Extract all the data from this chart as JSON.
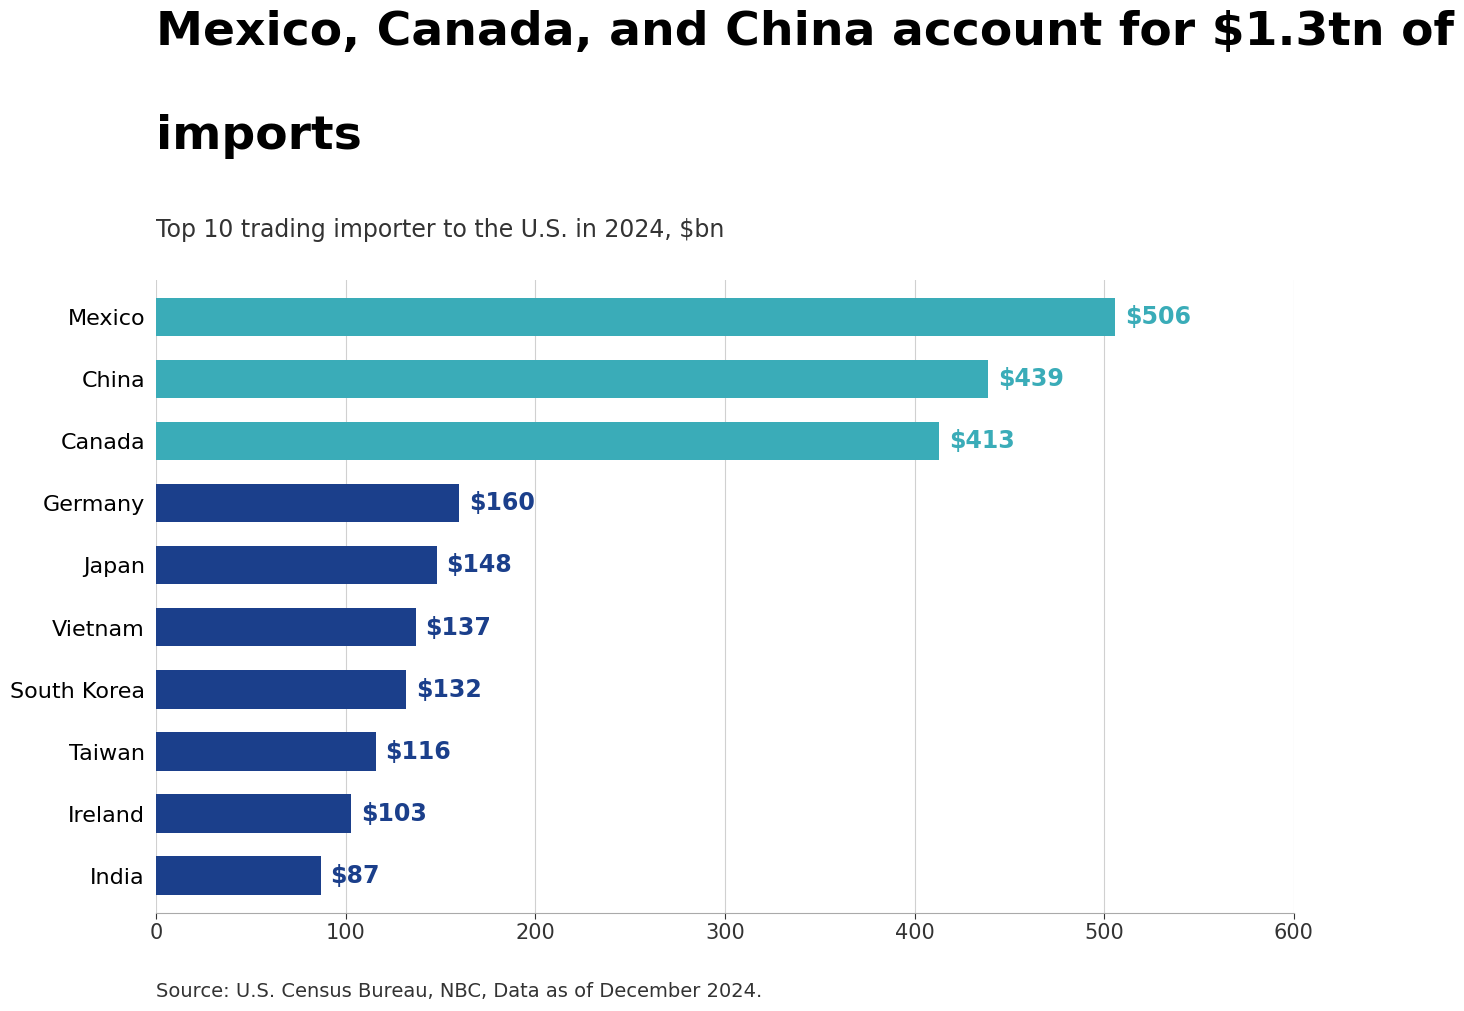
{
  "title_line1": "Mexico, Canada, and China account for $1.3tn of",
  "title_line2": "imports",
  "subtitle": "Top 10 trading importer to the U.S. in 2024, $bn",
  "source": "Source: U.S. Census Bureau, NBC, Data as of December 2024.",
  "categories": [
    "Mexico",
    "China",
    "Canada",
    "Germany",
    "Japan",
    "Vietnam",
    "South Korea",
    "Taiwan",
    "Ireland",
    "India"
  ],
  "values": [
    506,
    439,
    413,
    160,
    148,
    137,
    132,
    116,
    103,
    87
  ],
  "bar_colors_teal": [
    "Mexico",
    "China",
    "Canada"
  ],
  "teal_color": "#3aacb8",
  "blue_color": "#1b3f8b",
  "label_color_teal": "#3aacb8",
  "label_color_blue": "#1b3f8b",
  "background_color": "#ffffff",
  "title_color": "#000000",
  "subtitle_color": "#333333",
  "source_color": "#333333",
  "xlim": [
    0,
    600
  ],
  "xticks": [
    0,
    100,
    200,
    300,
    400,
    500,
    600
  ],
  "title_fontsize": 34,
  "subtitle_fontsize": 17,
  "bar_label_fontsize": 17,
  "tick_fontsize": 15,
  "ytick_fontsize": 16,
  "source_fontsize": 14,
  "bar_height": 0.62
}
